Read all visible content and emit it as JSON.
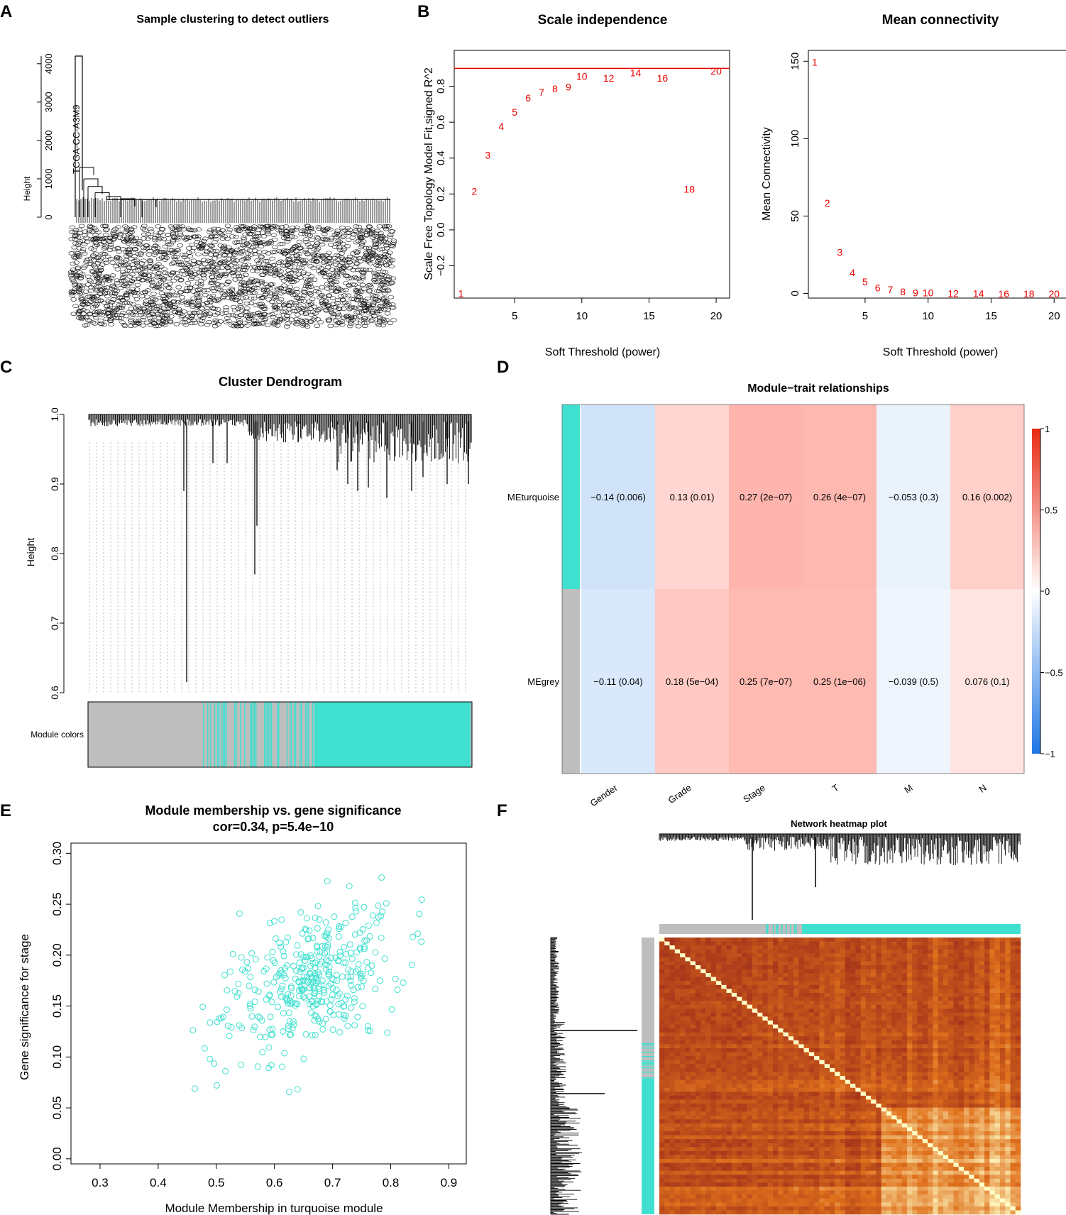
{
  "figure": {
    "panel_labels": [
      "A",
      "B",
      "C",
      "D",
      "E",
      "F"
    ]
  },
  "chart_data": [
    {
      "panel": "A",
      "type": "dendrogram",
      "title": "Sample clustering to detect outliers",
      "ylabel": "Height",
      "yticks": [
        0,
        1000,
        2000,
        3000,
        4000
      ],
      "ylim": [
        0,
        4200
      ],
      "outlier_label": "TCGA-CC-A3M9",
      "outlier_height": 4200
    },
    {
      "panel": "B1",
      "type": "scatter",
      "title": "Scale independence",
      "xlabel": "Soft Threshold (power)",
      "ylabel": "Scale Free Topology Model Fit,signed R^2",
      "xticks": [
        5,
        10,
        15,
        20
      ],
      "yticks": [
        -0.2,
        0.0,
        0.2,
        0.4,
        0.6,
        0.8
      ],
      "xlim": [
        0.5,
        21
      ],
      "ylim": [
        -0.38,
        1.0
      ],
      "hline": 0.9,
      "x": [
        1,
        2,
        3,
        4,
        5,
        6,
        7,
        8,
        9,
        10,
        12,
        14,
        16,
        18,
        20
      ],
      "y": [
        -0.35,
        0.22,
        0.42,
        0.58,
        0.66,
        0.74,
        0.77,
        0.79,
        0.8,
        0.86,
        0.85,
        0.88,
        0.85,
        0.23,
        0.89
      ],
      "point_color": "#ee0000"
    },
    {
      "panel": "B2",
      "type": "scatter",
      "title": "Mean connectivity",
      "xlabel": "Soft Threshold (power)",
      "ylabel": "Mean Connectivity",
      "xticks": [
        5,
        10,
        15,
        20
      ],
      "yticks": [
        0,
        50,
        100,
        150
      ],
      "xlim": [
        0.5,
        21
      ],
      "ylim": [
        -3,
        157
      ],
      "x": [
        1,
        2,
        3,
        4,
        5,
        6,
        7,
        8,
        9,
        10,
        12,
        14,
        16,
        18,
        20
      ],
      "y": [
        150,
        59,
        27,
        14,
        8,
        4,
        3,
        1.5,
        1,
        0.8,
        0.5,
        0.4,
        0.3,
        0.2,
        0.2
      ],
      "point_color": "#ee0000"
    },
    {
      "panel": "C",
      "type": "dendrogram",
      "title": "Cluster Dendrogram",
      "ylabel": "Height",
      "yticks": [
        0.6,
        0.7,
        0.8,
        0.9,
        1.0
      ],
      "ylim": [
        0.6,
        1.0
      ],
      "color_bar_label": "Module colors",
      "modules": [
        "grey",
        "turquoise"
      ]
    },
    {
      "panel": "D",
      "type": "heatmap",
      "title": "Module−trait relationships",
      "rows": [
        "MEturquoise",
        "MEgrey"
      ],
      "row_colors": [
        "#40e0d0",
        "#bebebe"
      ],
      "columns": [
        "Gender",
        "Grade",
        "Stage",
        "T",
        "M",
        "N"
      ],
      "values": [
        [
          -0.14,
          0.13,
          0.27,
          0.26,
          -0.053,
          0.16
        ],
        [
          -0.11,
          0.18,
          0.25,
          0.25,
          -0.039,
          0.076
        ]
      ],
      "labels": [
        [
          "−0.14 (0.006)",
          "0.13 (0.01)",
          "0.27 (2e−07)",
          "0.26 (4e−07)",
          "−0.053 (0.3)",
          "0.16 (0.002)"
        ],
        [
          "−0.11 (0.04)",
          "0.18 (5e−04)",
          "0.25 (7e−07)",
          "0.25 (1e−06)",
          "−0.039 (0.5)",
          "0.076 (0.1)"
        ]
      ],
      "colorbar_ticks": [
        "1",
        "0.5",
        "0",
        "−0.5",
        "−1"
      ],
      "colorbar_values": [
        1,
        0.5,
        0,
        -0.5,
        -1
      ],
      "colormap": [
        "#1e76e4",
        "#ffffff",
        "#e82a13"
      ]
    },
    {
      "panel": "E",
      "type": "scatter",
      "title": "Module membership vs. gene significance",
      "subtitle": "cor=0.34, p=5.4e−10",
      "xlabel": "Module Membership in turquoise module",
      "ylabel": "Gene significance for stage",
      "xticks": [
        0.3,
        0.4,
        0.5,
        0.6,
        0.7,
        0.8,
        0.9
      ],
      "yticks": [
        0.0,
        0.05,
        0.1,
        0.15,
        0.2,
        0.25,
        0.3
      ],
      "xlim": [
        0.25,
        0.93
      ],
      "ylim": [
        -0.005,
        0.31
      ],
      "point_color": "#40e0d0",
      "n_points": 380,
      "cor": 0.34
    },
    {
      "panel": "F",
      "type": "heatmap",
      "title": "Network heatmap plot",
      "modules": [
        "grey",
        "turquoise"
      ],
      "colormap": [
        "#8b1a1a",
        "#e0711c",
        "#ffffc8"
      ]
    }
  ]
}
